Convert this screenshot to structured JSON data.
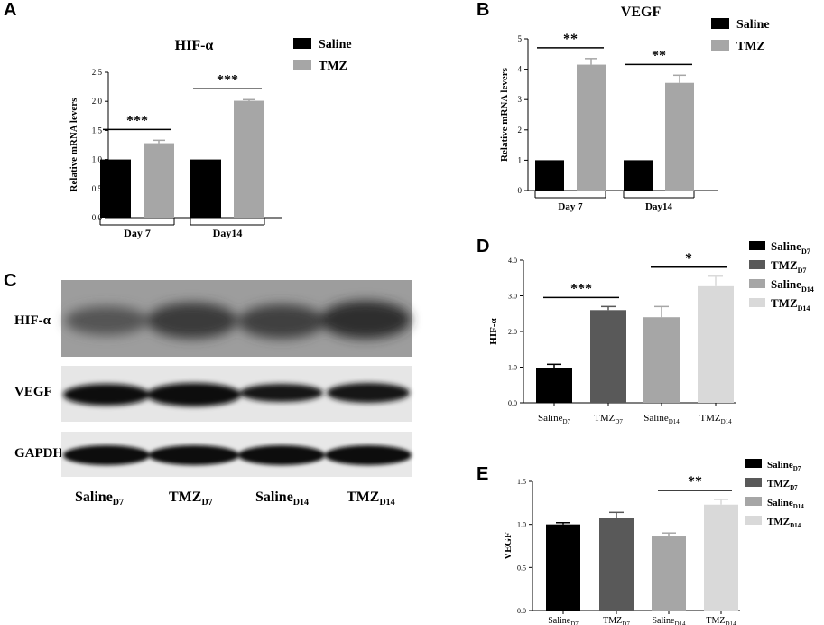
{
  "panels": {
    "a": "A",
    "b": "B",
    "c": "C",
    "d": "D",
    "e": "E"
  },
  "blot": {
    "rows": [
      "HIF-α",
      "VEGF",
      "GAPDH"
    ],
    "lanes": [
      {
        "base": "Saline",
        "sub": "D7"
      },
      {
        "base": "TMZ",
        "sub": "D7"
      },
      {
        "base": "Saline",
        "sub": "D14"
      },
      {
        "base": "TMZ",
        "sub": "D14"
      }
    ]
  },
  "chart_data": [
    {
      "id": "A",
      "type": "bar",
      "title": "HIF-α",
      "ylabel": "Relative mRNA levers",
      "xlabel": "",
      "categories": [
        "Day 7",
        "Day14"
      ],
      "series": [
        {
          "name": "Saline",
          "values": [
            1.0,
            1.0
          ],
          "errors": [
            0,
            0
          ],
          "color": "#000000"
        },
        {
          "name": "TMZ",
          "values": [
            1.28,
            2.01
          ],
          "errors": [
            0.05,
            0.02
          ],
          "color": "#a6a6a6"
        }
      ],
      "ylim": [
        0,
        2.5
      ],
      "yticks": [
        "0.0",
        "0.5",
        "1.0",
        "1.5",
        "2.0",
        "2.5"
      ],
      "significance": [
        "***",
        "***"
      ],
      "legend": "top-right"
    },
    {
      "id": "B",
      "type": "bar",
      "title": "VEGF",
      "ylabel": "Relative mRNA levers",
      "xlabel": "",
      "categories": [
        "Day 7",
        "Day14"
      ],
      "series": [
        {
          "name": "Saline",
          "values": [
            1.0,
            1.0
          ],
          "errors": [
            0,
            0
          ],
          "color": "#000000"
        },
        {
          "name": "TMZ",
          "values": [
            4.15,
            3.55
          ],
          "errors": [
            0.2,
            0.25
          ],
          "color": "#a6a6a6"
        }
      ],
      "ylim": [
        0,
        5
      ],
      "yticks": [
        "0",
        "1",
        "2",
        "3",
        "4",
        "5"
      ],
      "significance": [
        "**",
        "**"
      ],
      "legend": "top-right"
    },
    {
      "id": "D",
      "type": "bar",
      "title": "",
      "ylabel": "HIF-α",
      "xlabel": "",
      "categories": [
        {
          "base": "Saline",
          "sub": "D7"
        },
        {
          "base": "TMZ",
          "sub": "D7"
        },
        {
          "base": "Saline",
          "sub": "D14"
        },
        {
          "base": "TMZ",
          "sub": "D14"
        }
      ],
      "values": [
        0.98,
        2.6,
        2.4,
        3.27
      ],
      "errors": [
        0.1,
        0.1,
        0.3,
        0.28
      ],
      "colors": [
        "#000000",
        "#595959",
        "#a6a6a6",
        "#d9d9d9"
      ],
      "legend_entries": [
        {
          "base": "Saline",
          "sub": "D7"
        },
        {
          "base": "TMZ",
          "sub": "D7"
        },
        {
          "base": "Saline",
          "sub": "D14"
        },
        {
          "base": "TMZ",
          "sub": "D14"
        }
      ],
      "ylim": [
        0,
        4
      ],
      "yticks": [
        "0.0",
        "1.0",
        "2.0",
        "3.0",
        "4.0"
      ],
      "comparisons": [
        {
          "from": 0,
          "to": 1,
          "label": "***"
        },
        {
          "from": 2,
          "to": 3,
          "label": "*"
        }
      ],
      "legend": "top-right"
    },
    {
      "id": "E",
      "type": "bar",
      "title": "",
      "ylabel": "VEGF",
      "xlabel": "",
      "categories": [
        {
          "base": "Saline",
          "sub": "D7"
        },
        {
          "base": "TMZ",
          "sub": "D7"
        },
        {
          "base": "Saline",
          "sub": "D14"
        },
        {
          "base": "TMZ",
          "sub": "D14"
        }
      ],
      "values": [
        1.0,
        1.08,
        0.86,
        1.23
      ],
      "errors": [
        0.02,
        0.06,
        0.04,
        0.06
      ],
      "colors": [
        "#000000",
        "#595959",
        "#a6a6a6",
        "#d9d9d9"
      ],
      "legend_entries": [
        {
          "base": "Saline",
          "sub": "D7"
        },
        {
          "base": "TMZ",
          "sub": "D7"
        },
        {
          "base": "Saline",
          "sub": "D14"
        },
        {
          "base": "TMZ",
          "sub": "D14"
        }
      ],
      "ylim": [
        0,
        1.5
      ],
      "yticks": [
        "0.0",
        "0.5",
        "1.0",
        "1.5"
      ],
      "comparisons": [
        {
          "from": 2,
          "to": 3,
          "label": "**"
        }
      ],
      "legend": "top-right"
    }
  ]
}
